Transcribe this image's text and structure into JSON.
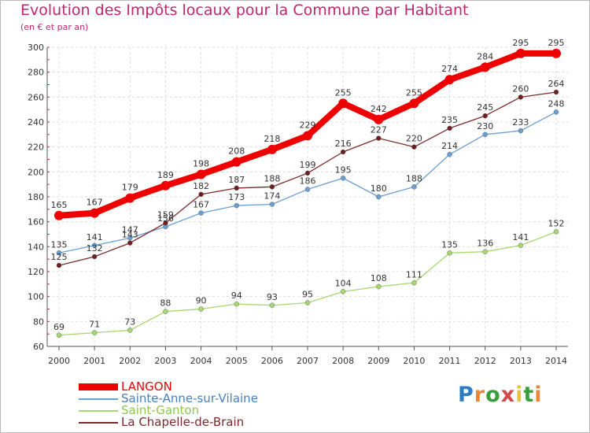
{
  "chart_data": {
    "type": "line",
    "title": "Evolution des Impôts locaux pour la Commune par Habitant",
    "subtitle": "(en € et par an)",
    "xlabel": "",
    "ylabel": "",
    "x": [
      "2000",
      "2001",
      "2002",
      "2003",
      "2004",
      "2005",
      "2006",
      "2007",
      "2008",
      "2009",
      "2010",
      "2011",
      "2012",
      "2013",
      "2014"
    ],
    "ylim": [
      60,
      300
    ],
    "yticks": [
      60,
      80,
      100,
      120,
      140,
      160,
      180,
      200,
      220,
      240,
      260,
      280,
      300
    ],
    "grid": true,
    "legend_position": "bottom-left",
    "series": [
      {
        "name": "LANGON",
        "color": "#ee0000",
        "values": [
          165,
          167,
          179,
          189,
          198,
          208,
          218,
          229,
          255,
          242,
          255,
          274,
          284,
          295,
          295
        ]
      },
      {
        "name": "Sainte-Anne-sur-Vilaine",
        "color": "#6a9fd4",
        "values": [
          135,
          141,
          147,
          156,
          167,
          173,
          174,
          186,
          195,
          180,
          188,
          214,
          230,
          233,
          248
        ]
      },
      {
        "name": "Saint-Ganton",
        "color": "#a6d86e",
        "values": [
          69,
          71,
          73,
          88,
          90,
          94,
          93,
          95,
          104,
          108,
          111,
          135,
          136,
          141,
          152
        ]
      },
      {
        "name": "La Chapelle-de-Brain",
        "color": "#7a2a2a",
        "values": [
          125,
          132,
          143,
          159,
          182,
          187,
          188,
          199,
          216,
          227,
          220,
          235,
          245,
          260,
          264
        ]
      }
    ]
  },
  "logo": {
    "letters": [
      "P",
      "r",
      "o",
      "x",
      "i",
      "t",
      "i"
    ],
    "colors": [
      "#2a7fc4",
      "#e8873a",
      "#3a9e3a",
      "#d04a4a",
      "#e8c23a",
      "#3a9e3a",
      "#e8873a"
    ]
  }
}
